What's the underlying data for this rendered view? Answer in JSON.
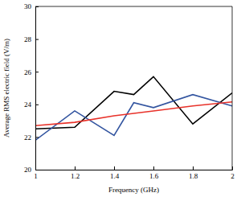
{
  "chart_data": {
    "type": "line",
    "x_label": "Frequency (GHz)",
    "y_label": "Average RMS electric field (V/m)",
    "x": [
      1,
      1.2,
      1.4,
      1.5,
      1.6,
      1.8,
      2
    ],
    "series": [
      {
        "color": "#000000",
        "values": [
          22.5,
          22.6,
          24.8,
          24.6,
          25.7,
          22.8,
          24.7
        ]
      },
      {
        "color": "#3355a0",
        "values": [
          21.8,
          23.6,
          22.1,
          24.1,
          23.8,
          24.6,
          23.9
        ]
      },
      {
        "color": "#e8322a",
        "values": [
          22.7,
          22.9,
          23.3,
          23.45,
          23.6,
          23.9,
          24.15
        ]
      }
    ],
    "xlim": [
      1,
      2
    ],
    "xticks": [
      1,
      1.2,
      1.4,
      1.6,
      1.8,
      2
    ],
    "ylim": [
      20,
      30
    ],
    "yticks": [
      20,
      22,
      24,
      26,
      28,
      30
    ],
    "grid": false
  }
}
